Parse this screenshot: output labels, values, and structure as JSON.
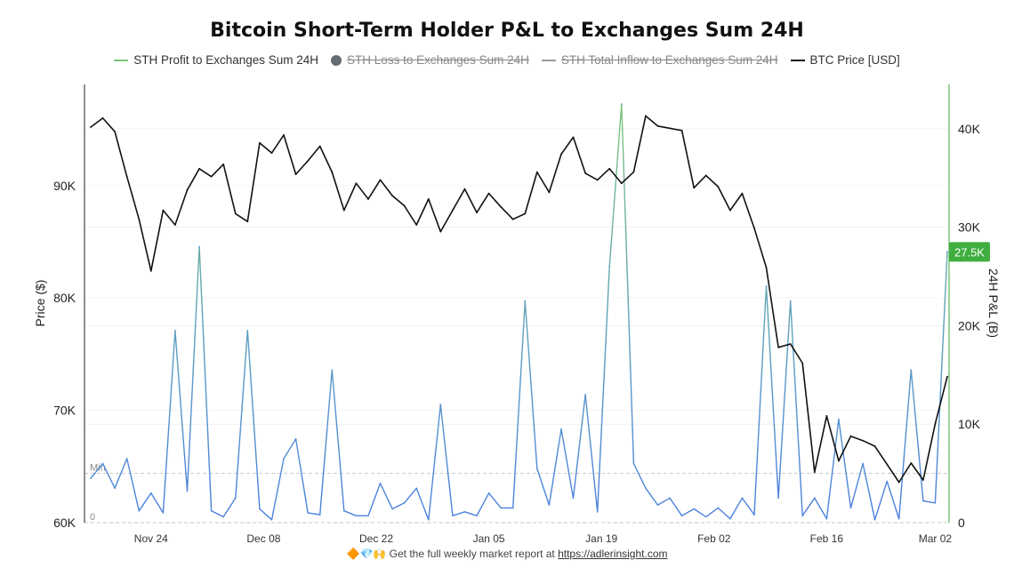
{
  "chart_data": {
    "type": "line",
    "title": "Bitcoin Short-Term Holder P&L to Exchanges Sum 24H",
    "legend": [
      {
        "name": "STH Profit to Exchanges Sum 24H",
        "color": "#7cc47c",
        "active": true,
        "marker": "line"
      },
      {
        "name": "STH Loss to Exchanges Sum 24H",
        "color": "#666a73",
        "active": false,
        "marker": "dot"
      },
      {
        "name": "STH Total Inflow to  Exchanges Sum 24H",
        "color": "#9a9a9a",
        "active": false,
        "marker": "line"
      },
      {
        "name": "BTC Price [USD]",
        "color": "#111111",
        "active": true,
        "marker": "line"
      }
    ],
    "x_ticks": [
      "Nov 24",
      "Dec 08",
      "Dec 22",
      "Jan 05",
      "Jan 19",
      "Feb 02",
      "Feb 16",
      "Mar 02"
    ],
    "y_left": {
      "label": "Price ($)",
      "ticks": [
        "60K",
        "70K",
        "80K",
        "90K"
      ],
      "range": [
        60000,
        99000
      ]
    },
    "y_right": {
      "label": "24H P&L (B)",
      "ticks": [
        "0",
        "10K",
        "20K",
        "30K",
        "40K"
      ],
      "range": [
        0,
        44500
      ]
    },
    "reference_lines": [
      {
        "label": "Min",
        "value": 5000
      },
      {
        "label": "0",
        "value": 0
      }
    ],
    "current_value_badge": "27.5K",
    "series": [
      {
        "name": "BTC Price [USD]",
        "axis": "left",
        "x": [
          0,
          1.5,
          3,
          4.5,
          6,
          7.5,
          9,
          10.5,
          12,
          13.5,
          15,
          16.5,
          18,
          19.5,
          21,
          22.5,
          24,
          25.5,
          27,
          28.5,
          30,
          31.5,
          33,
          34.5,
          36,
          37.5,
          39,
          40.5,
          42,
          43.5,
          45,
          46.5,
          48,
          49.5,
          51,
          52.5,
          54,
          55.5,
          57,
          58.5,
          60,
          61.5,
          63,
          64.5,
          66,
          67.5,
          69,
          70.5,
          72,
          73.5,
          75,
          76.5,
          78,
          79.5,
          81,
          82.5,
          84,
          85.5,
          87,
          88.5,
          90,
          91.5,
          93,
          94.5,
          96,
          97.5,
          99,
          100.5,
          102,
          103.5,
          105,
          106.5
        ],
        "y": [
          95200,
          96000,
          94800,
          90800,
          87000,
          82400,
          87800,
          86500,
          89600,
          91500,
          90800,
          91900,
          87500,
          86800,
          93800,
          92900,
          94500,
          91000,
          92200,
          93500,
          91200,
          87800,
          90200,
          88800,
          90500,
          89100,
          88200,
          86500,
          88800,
          85900,
          87800,
          89700,
          87600,
          89300,
          88100,
          87000,
          87500,
          91200,
          89400,
          92800,
          94300,
          91100,
          90500,
          91500,
          90200,
          91200,
          96200,
          95300,
          95100,
          94900,
          89800,
          90900,
          89900,
          87800,
          89300,
          86200,
          82700,
          75600,
          75900,
          74200,
          64500,
          69500,
          65500,
          67700,
          67300,
          66800,
          65200,
          63600,
          65300,
          63800,
          68800,
          73000
        ]
      },
      {
        "name": "STH Profit to Exchanges Sum 24H",
        "axis": "right",
        "x": [
          0,
          1.5,
          3,
          4.5,
          6,
          7.5,
          9,
          10.5,
          12,
          13.5,
          15,
          16.5,
          18,
          19.5,
          21,
          22.5,
          24,
          25.5,
          27,
          28.5,
          30,
          31.5,
          33,
          34.5,
          36,
          37.5,
          39,
          40.5,
          42,
          43.5,
          45,
          46.5,
          48,
          49.5,
          51,
          52.5,
          54,
          55.5,
          57,
          58.5,
          60,
          61.5,
          63,
          64.5,
          66,
          67.5,
          69,
          70.5,
          72,
          73.5,
          75,
          76.5,
          78,
          79.5,
          81,
          82.5,
          84,
          85.5,
          87,
          88.5,
          90,
          91.5,
          93,
          94.5,
          96,
          97.5,
          99,
          100.5,
          102,
          103.5,
          105,
          106.5
        ],
        "y": [
          4500,
          6000,
          3500,
          6500,
          1200,
          3000,
          1000,
          19500,
          3200,
          28000,
          1200,
          600,
          2500,
          19500,
          1400,
          300,
          6500,
          8500,
          1000,
          800,
          15500,
          1200,
          700,
          700,
          4000,
          1400,
          2000,
          3500,
          300,
          12000,
          700,
          1100,
          700,
          3000,
          1500,
          1500,
          22500,
          5500,
          1800,
          9500,
          2500,
          13000,
          1100,
          26000,
          42500,
          6000,
          3500,
          1800,
          2500,
          700,
          1400,
          600,
          1500,
          400,
          2500,
          800,
          24000,
          2500,
          22500,
          700,
          2500,
          400,
          10500,
          1500,
          6000,
          300,
          4200,
          400,
          15500,
          2200,
          2000,
          27500
        ]
      }
    ]
  },
  "footer": {
    "emojis": "🔶💎🙌",
    "text": "Get the full weekly market report at",
    "link": "https://adlerinsight.com"
  }
}
